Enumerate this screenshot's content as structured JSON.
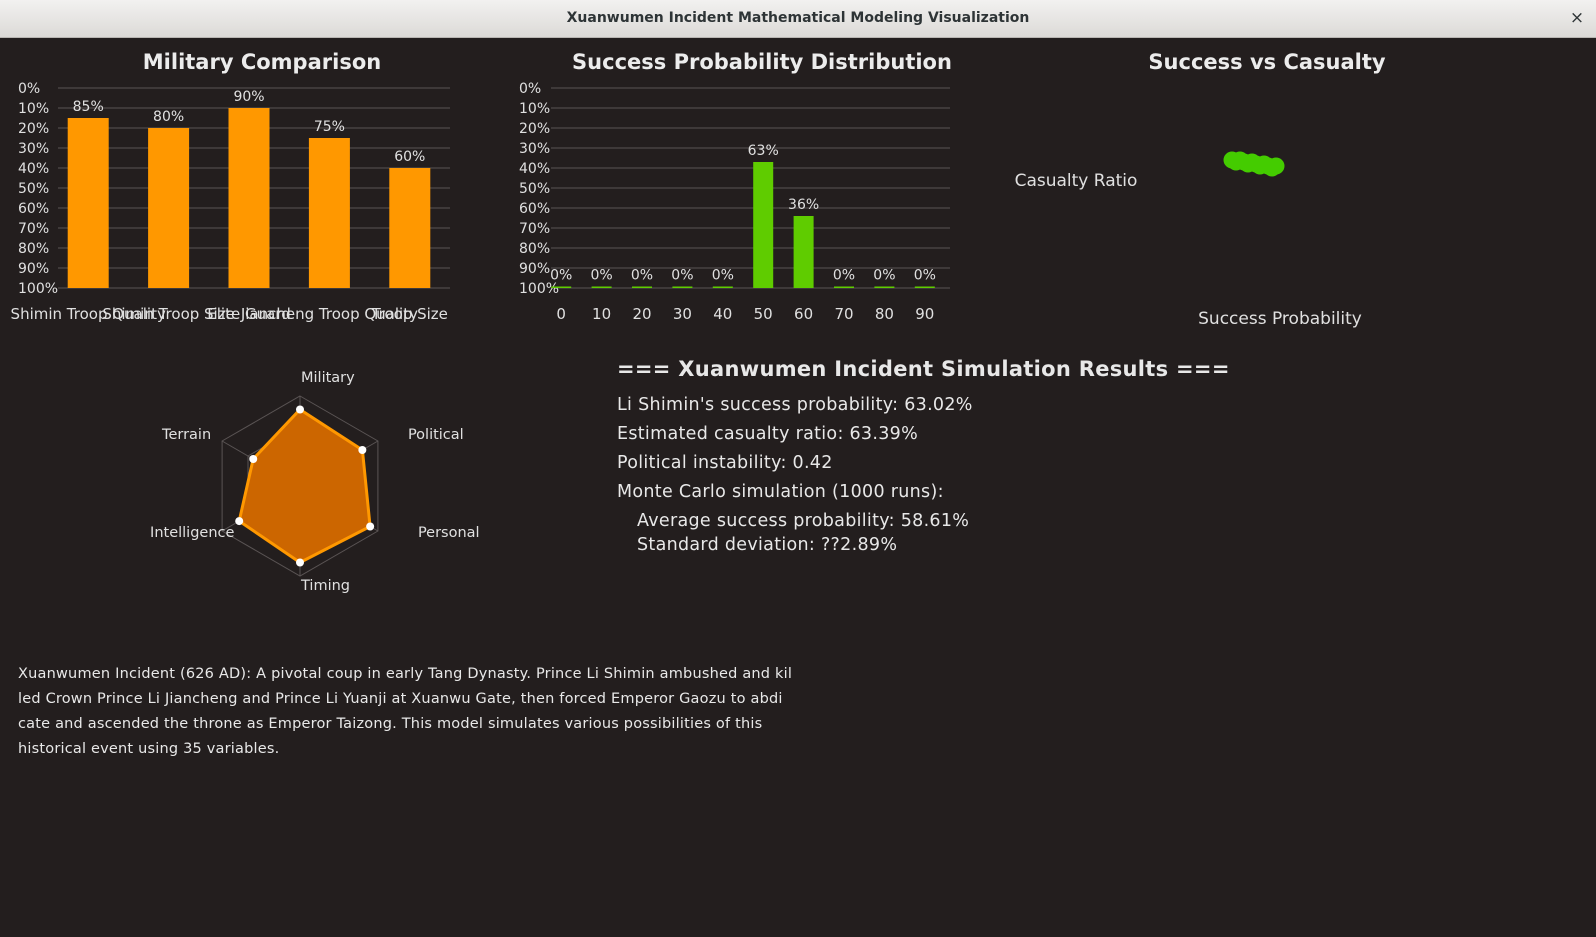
{
  "window": {
    "title": "Xuanwumen Incident Mathematical Modeling Visualization",
    "close_glyph": "×"
  },
  "colors": {
    "background": "#231e1e",
    "bar_orange": "#ff9800",
    "bar_green": "#5fcc00",
    "radar_fill": "#cc6600",
    "radar_stroke": "#ff9800",
    "scatter_green": "#44cc00",
    "grid": "#5a5454"
  },
  "charts": {
    "military": {
      "title": "Military Comparison",
      "labels": [
        "Shimin Troop Quality",
        "Shimin Troop Size",
        "Elite Guard",
        "Jiancheng Troop Quality",
        "Troop Size"
      ],
      "value_labels": [
        "85%",
        "80%",
        "90%",
        "75%",
        "60%"
      ]
    },
    "distribution": {
      "title": "Success Probability Distribution",
      "value_labels": [
        "0%",
        "0%",
        "0%",
        "0%",
        "0%",
        "63%",
        "36%",
        "0%",
        "0%",
        "0%"
      ]
    },
    "scatter": {
      "title": "Success vs Casualty",
      "ylabel": "Casualty Ratio",
      "xlabel": "Success Probability"
    },
    "radar": {
      "axes": [
        "Military",
        "Political",
        "Personal",
        "Timing",
        "Intelligence",
        "Terrain"
      ]
    }
  },
  "chart_data": [
    {
      "type": "bar",
      "title": "Military Comparison",
      "categories": [
        "Shimin Troop Quality",
        "Shimin Troop Size",
        "Elite Guard",
        "Jiancheng Troop Quality",
        "Troop Size"
      ],
      "values": [
        85,
        80,
        90,
        75,
        60
      ],
      "y_ticks": [
        "0%",
        "10%",
        "20%",
        "30%",
        "40%",
        "50%",
        "60%",
        "70%",
        "80%",
        "90%",
        "100%"
      ],
      "ylim": [
        0,
        100
      ],
      "y_inverted": true,
      "grid": true
    },
    {
      "type": "bar",
      "title": "Success Probability Distribution",
      "categories": [
        "0",
        "10",
        "20",
        "30",
        "40",
        "50",
        "60",
        "70",
        "80",
        "90"
      ],
      "values": [
        0,
        0,
        0,
        0,
        0,
        63,
        36,
        0,
        0,
        0
      ],
      "y_ticks": [
        "0%",
        "10%",
        "20%",
        "30%",
        "40%",
        "50%",
        "60%",
        "70%",
        "80%",
        "90%",
        "100%"
      ],
      "ylim": [
        0,
        100
      ],
      "y_inverted": true,
      "grid": true
    },
    {
      "type": "scatter",
      "title": "Success vs Casualty",
      "xlabel": "Success Probability",
      "ylabel": "Casualty Ratio",
      "points": [
        [
          0.58,
          0.64
        ],
        [
          0.59,
          0.63
        ],
        [
          0.6,
          0.64
        ],
        [
          0.61,
          0.63
        ],
        [
          0.62,
          0.62
        ],
        [
          0.63,
          0.63
        ],
        [
          0.64,
          0.62
        ],
        [
          0.65,
          0.61
        ],
        [
          0.66,
          0.62
        ],
        [
          0.67,
          0.61
        ],
        [
          0.68,
          0.6
        ],
        [
          0.69,
          0.61
        ]
      ],
      "xlim": [
        0,
        1
      ],
      "ylim": [
        0,
        1
      ],
      "grid": false
    },
    {
      "type": "radar",
      "axes": [
        "Military",
        "Political",
        "Personal",
        "Timing",
        "Intelligence",
        "Terrain"
      ],
      "values": [
        0.85,
        0.8,
        0.9,
        0.85,
        0.78,
        0.6
      ],
      "rings": 3
    }
  ],
  "results": {
    "heading": "=== Xuanwumen Incident Simulation Results ===",
    "success": "Li Shimin's success probability: 63.02%",
    "casualty": "Estimated casualty ratio: 63.39%",
    "instability": "Political instability: 0.42",
    "monte_carlo": "Monte Carlo simulation (1000 runs):",
    "avg": "Average success probability: 58.61%",
    "std": "Standard deviation: ??2.89%"
  },
  "description": {
    "lines": [
      "Xuanwumen Incident (626 AD): A pivotal coup in early Tang Dynasty. Prince Li Shimin ambushed and kil",
      "led Crown Prince Li Jiancheng and Prince Li Yuanji at Xuanwu Gate, then forced Emperor Gaozu to abdi",
      "cate and ascended the throne as Emperor Taizong. This model simulates various possibilities of this",
      "historical event using 35 variables."
    ]
  }
}
